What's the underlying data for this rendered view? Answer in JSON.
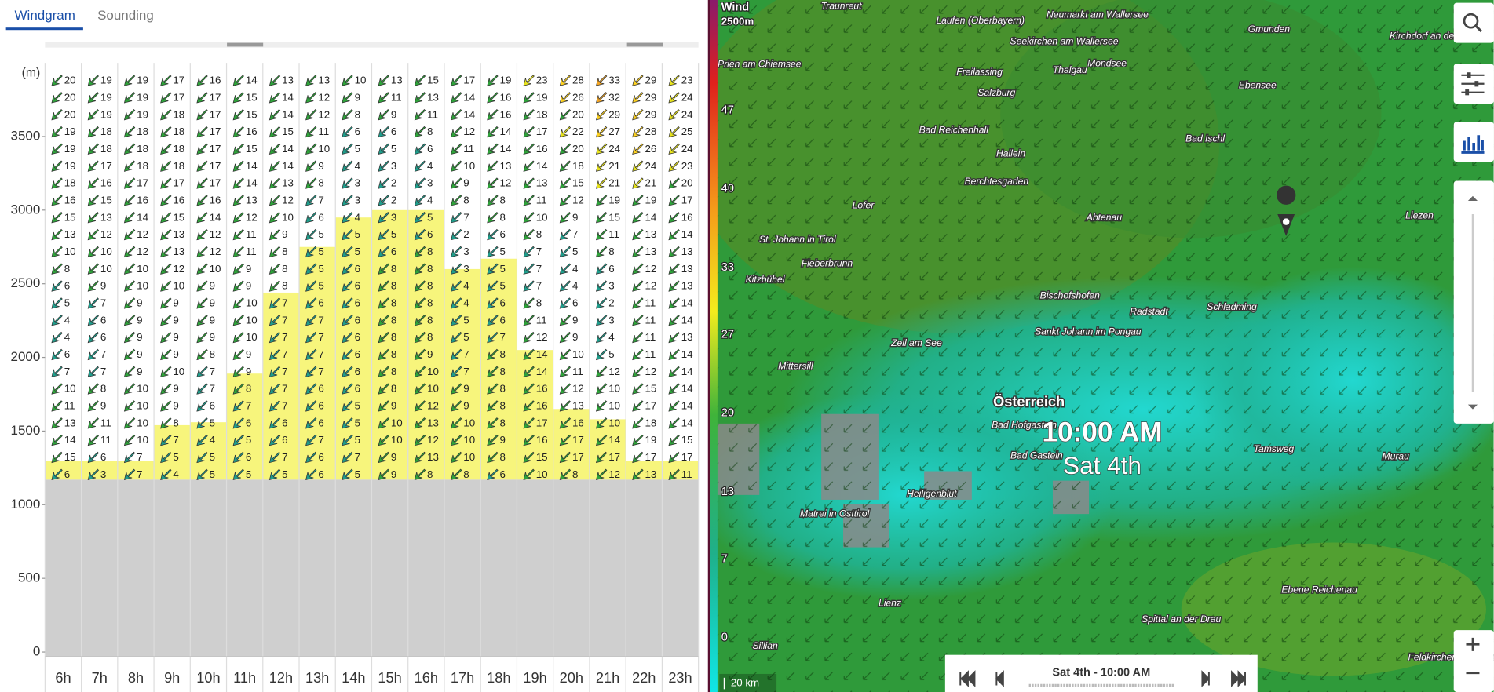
{
  "tabs": [
    "Windgram",
    "Sounding"
  ],
  "chart_data": {
    "type": "windgram",
    "y_label": "(m)",
    "categories": [
      "6h",
      "7h",
      "8h",
      "9h",
      "10h",
      "11h",
      "12h",
      "13h",
      "14h",
      "15h",
      "16h",
      "17h",
      "18h",
      "19h",
      "20h",
      "21h",
      "22h",
      "23h"
    ],
    "ylim": [
      0,
      4000
    ],
    "yticks": [
      0,
      500,
      1000,
      1500,
      2000,
      2500,
      3000,
      3500
    ],
    "ground": 1170,
    "boundary_layer_top": [
      1300,
      1300,
      1300,
      1540,
      1560,
      1890,
      2440,
      2750,
      2950,
      3000,
      3000,
      2600,
      2670,
      2050,
      1650,
      1580,
      1300,
      1300
    ],
    "speeds": [
      [
        20,
        20,
        20,
        19,
        19,
        19,
        18,
        16,
        15,
        13,
        10,
        8,
        6,
        5,
        4,
        4,
        6,
        7,
        10,
        11,
        13,
        14,
        15,
        6
      ],
      [
        19,
        19,
        19,
        18,
        18,
        17,
        16,
        15,
        13,
        12,
        10,
        10,
        9,
        7,
        6,
        6,
        7,
        7,
        8,
        9,
        11,
        11,
        6,
        3
      ],
      [
        19,
        19,
        19,
        18,
        18,
        18,
        17,
        16,
        14,
        12,
        12,
        10,
        10,
        9,
        9,
        9,
        9,
        9,
        10,
        10,
        10,
        10,
        7,
        7
      ],
      [
        17,
        17,
        18,
        18,
        18,
        18,
        17,
        16,
        15,
        13,
        13,
        12,
        10,
        9,
        9,
        9,
        9,
        10,
        9,
        9,
        8,
        7,
        5,
        4
      ],
      [
        16,
        17,
        17,
        17,
        17,
        17,
        17,
        16,
        14,
        12,
        12,
        10,
        9,
        9,
        9,
        9,
        8,
        7,
        7,
        6,
        5,
        4,
        5,
        5
      ],
      [
        14,
        15,
        15,
        16,
        15,
        14,
        14,
        13,
        12,
        11,
        11,
        9,
        9,
        10,
        10,
        10,
        9,
        9,
        8,
        7,
        6,
        5,
        6,
        5
      ],
      [
        13,
        14,
        14,
        15,
        14,
        14,
        13,
        12,
        10,
        9,
        8,
        8,
        8,
        7,
        7,
        7,
        7,
        7,
        7,
        7,
        6,
        6,
        7,
        5
      ],
      [
        13,
        12,
        12,
        11,
        10,
        9,
        8,
        7,
        6,
        5,
        5,
        5,
        5,
        6,
        7,
        7,
        7,
        7,
        6,
        6,
        6,
        7,
        6,
        6
      ],
      [
        10,
        9,
        8,
        6,
        5,
        4,
        3,
        3,
        4,
        5,
        5,
        6,
        6,
        6,
        6,
        6,
        6,
        6,
        6,
        5,
        5,
        5,
        7,
        5
      ],
      [
        13,
        11,
        9,
        6,
        5,
        3,
        2,
        2,
        3,
        5,
        6,
        8,
        8,
        8,
        8,
        8,
        8,
        8,
        8,
        9,
        10,
        10,
        9,
        9
      ],
      [
        15,
        13,
        11,
        8,
        6,
        4,
        3,
        4,
        5,
        6,
        8,
        8,
        8,
        8,
        8,
        8,
        9,
        10,
        10,
        12,
        13,
        12,
        13,
        8
      ],
      [
        17,
        14,
        14,
        12,
        11,
        10,
        9,
        8,
        7,
        2,
        3,
        3,
        4,
        4,
        5,
        5,
        7,
        7,
        9,
        9,
        10,
        10,
        10,
        8
      ],
      [
        19,
        16,
        16,
        14,
        14,
        13,
        12,
        8,
        8,
        6,
        5,
        5,
        5,
        6,
        6,
        7,
        8,
        8,
        8,
        8,
        8,
        9,
        8,
        6
      ],
      [
        23,
        19,
        18,
        17,
        16,
        14,
        13,
        11,
        10,
        8,
        7,
        7,
        7,
        8,
        11,
        12,
        14,
        14,
        16,
        16,
        17,
        16,
        15,
        10
      ],
      [
        28,
        26,
        20,
        22,
        20,
        18,
        15,
        12,
        9,
        7,
        5,
        4,
        4,
        6,
        9,
        9,
        10,
        11,
        12,
        13,
        16,
        17,
        17,
        8
      ],
      [
        33,
        32,
        29,
        27,
        24,
        21,
        21,
        19,
        15,
        11,
        8,
        6,
        3,
        2,
        3,
        4,
        5,
        12,
        10,
        10,
        10,
        14,
        17,
        12
      ],
      [
        29,
        29,
        29,
        28,
        26,
        24,
        21,
        19,
        14,
        13,
        13,
        12,
        12,
        11,
        11,
        11,
        11,
        12,
        15,
        17,
        18,
        19,
        17,
        13
      ],
      [
        23,
        24,
        24,
        25,
        24,
        23,
        20,
        17,
        16,
        14,
        13,
        13,
        13,
        14,
        14,
        13,
        14,
        14,
        14,
        14,
        14,
        15,
        17,
        11
      ]
    ]
  },
  "map": {
    "title": "Wind",
    "level": "2500m",
    "colorbar_ticks": [
      47,
      40,
      33,
      27,
      20,
      13,
      7,
      0
    ],
    "places": [
      "Traunreut",
      "Laufen (Oberbayern)",
      "Neumarkt am Wallersee",
      "Seekirchen am Wallersee",
      "Gmunden",
      "Kirchdorf an der Krems",
      "Prien am Chiemsee",
      "Freilassing",
      "Thalgau",
      "Mondsee",
      "Salzburg",
      "Ebensee",
      "Bad Reichenhall",
      "Hallein",
      "Bad Ischl",
      "Berchtesgaden",
      "Lofer",
      "Abtenau",
      "Liezen",
      "St. Johann in Tirol",
      "Fieberbrunn",
      "Kitzbühel",
      "Bischofshofen",
      "Radstadt",
      "Schladming",
      "Sankt Johann im Pongau",
      "Zell am See",
      "Mittersill",
      "Bad Hofgastein",
      "Bad Gastein",
      "Tamsweg",
      "Murau",
      "Heiligenblut",
      "Matrei in Osttirol",
      "Lienz",
      "Ebene Reichenau",
      "Spittal an der Drau",
      "Sillian",
      "Feldkirchen in Kärnten"
    ],
    "country": "Österreich",
    "time": "10:00 AM",
    "date": "Sat 4th",
    "timeline": "Sat 4th - 10:00 AM",
    "scale": "20 km"
  }
}
